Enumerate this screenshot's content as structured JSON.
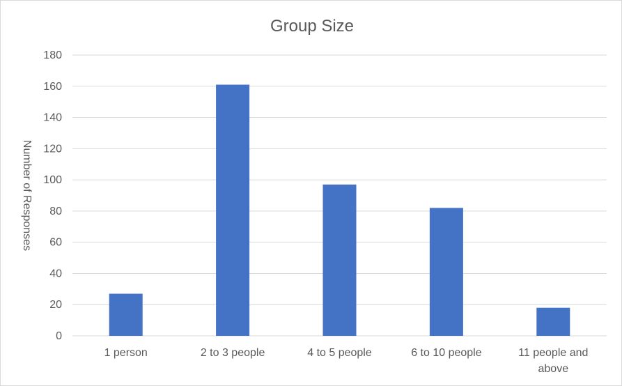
{
  "chart_data": {
    "type": "bar",
    "title": "Group Size",
    "xlabel": "",
    "ylabel": "Number of Responses",
    "categories": [
      "1 person",
      "2 to 3 people",
      "4 to 5 people",
      "6 to 10 people",
      "11 people and above"
    ],
    "values": [
      27,
      161,
      97,
      82,
      18
    ],
    "ylim": [
      0,
      180
    ],
    "yticks": [
      0,
      20,
      40,
      60,
      80,
      100,
      120,
      140,
      160,
      180
    ],
    "grid": true,
    "legend": "none",
    "bar_color": "#4472c4"
  }
}
